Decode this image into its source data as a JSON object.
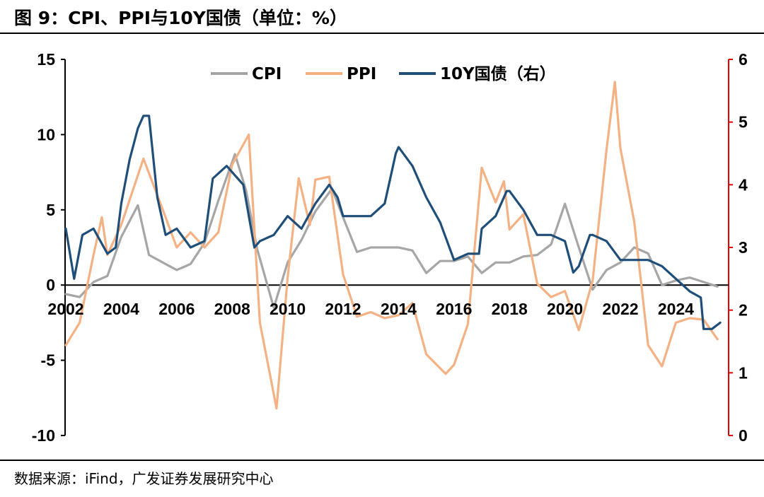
{
  "header": {
    "title": "图 9：CPI、PPI与10Y国债（单位：%）"
  },
  "footer": {
    "source": "数据来源：iFind，广发证券发展研究中心"
  },
  "chart_data": {
    "type": "line",
    "x_ticks": [
      "2002",
      "2004",
      "2006",
      "2008",
      "2010",
      "2012",
      "2014",
      "2016",
      "2018",
      "2020",
      "2022",
      "2024"
    ],
    "y_left": {
      "ticks": [
        "15",
        "10",
        "5",
        "0",
        "-5",
        "-10"
      ],
      "range": [
        -10,
        15
      ]
    },
    "y_right": {
      "ticks": [
        "6",
        "5",
        "4",
        "3",
        "2",
        "1",
        "0"
      ],
      "range": [
        0,
        6
      ]
    },
    "colors": {
      "CPI": "#a6a6a6",
      "PPI": "#f4b183",
      "10Y": "#1f4e79",
      "right_axis": "#e00000"
    },
    "legend": [
      "CPI",
      "PPI",
      "10Y国债（右）"
    ],
    "series": [
      {
        "name": "CPI",
        "axis": "left",
        "x": [
          2002.0,
          2002.5,
          2003.0,
          2003.5,
          2004.0,
          2004.6,
          2005.0,
          2005.5,
          2006.0,
          2006.5,
          2007.0,
          2007.5,
          2008.1,
          2008.5,
          2008.9,
          2009.5,
          2010.0,
          2010.5,
          2011.0,
          2011.6,
          2012.0,
          2012.5,
          2013.0,
          2013.5,
          2014.0,
          2014.5,
          2015.0,
          2015.5,
          2016.0,
          2016.5,
          2017.0,
          2017.5,
          2018.0,
          2018.5,
          2019.0,
          2019.5,
          2020.0,
          2020.5,
          2021.0,
          2021.5,
          2022.0,
          2022.5,
          2023.0,
          2023.5,
          2024.0,
          2024.5,
          2025.0,
          2025.5
        ],
        "values": [
          -0.6,
          -0.8,
          0.2,
          0.6,
          3.2,
          5.3,
          2.0,
          1.5,
          1.0,
          1.4,
          2.8,
          5.6,
          8.7,
          6.3,
          2.4,
          -1.5,
          1.5,
          3.0,
          4.9,
          6.4,
          4.5,
          2.2,
          2.5,
          2.5,
          2.5,
          2.3,
          0.8,
          1.6,
          1.6,
          1.9,
          0.8,
          1.5,
          1.5,
          1.9,
          2.0,
          2.7,
          5.4,
          2.5,
          -0.3,
          1.0,
          1.5,
          2.5,
          2.1,
          0.0,
          0.3,
          0.5,
          0.2,
          -0.1
        ]
      },
      {
        "name": "PPI",
        "axis": "left",
        "x": [
          2002.0,
          2002.5,
          2003.0,
          2003.3,
          2003.5,
          2004.0,
          2004.8,
          2005.5,
          2006.0,
          2006.5,
          2007.0,
          2007.5,
          2008.0,
          2008.6,
          2009.0,
          2009.6,
          2010.0,
          2010.4,
          2010.8,
          2011.0,
          2011.5,
          2012.0,
          2012.5,
          2013.0,
          2013.5,
          2014.0,
          2014.5,
          2015.0,
          2015.7,
          2016.0,
          2016.5,
          2017.0,
          2017.5,
          2017.8,
          2018.0,
          2018.5,
          2019.0,
          2019.5,
          2020.0,
          2020.5,
          2021.0,
          2021.5,
          2021.8,
          2022.0,
          2022.5,
          2023.0,
          2023.5,
          2024.0,
          2024.5,
          2025.0,
          2025.5
        ],
        "values": [
          -4.0,
          -2.5,
          2.0,
          4.5,
          2.0,
          4.0,
          8.4,
          5.0,
          2.5,
          3.5,
          2.5,
          3.5,
          8.0,
          10.0,
          -2.5,
          -8.2,
          0.5,
          7.1,
          4.0,
          7.0,
          7.2,
          0.7,
          -2.1,
          -1.8,
          -2.2,
          -2.0,
          -1.2,
          -4.6,
          -5.9,
          -5.3,
          -2.6,
          7.8,
          5.5,
          6.9,
          3.7,
          4.7,
          0.1,
          -0.8,
          -0.4,
          -3.0,
          0.3,
          9.0,
          13.5,
          9.1,
          4.2,
          -4.0,
          -5.4,
          -2.5,
          -2.2,
          -2.3,
          -3.6
        ]
      },
      {
        "name": "10Y国债（右）",
        "axis": "right",
        "x": [
          2002.0,
          2002.3,
          2002.6,
          2003.0,
          2003.5,
          2003.8,
          2004.0,
          2004.3,
          2004.6,
          2004.8,
          2005.0,
          2005.3,
          2005.6,
          2006.0,
          2006.5,
          2007.0,
          2007.3,
          2007.8,
          2008.0,
          2008.4,
          2008.8,
          2009.0,
          2009.5,
          2010.0,
          2010.5,
          2011.0,
          2011.5,
          2011.8,
          2012.0,
          2012.5,
          2013.0,
          2013.5,
          2013.9,
          2014.0,
          2014.5,
          2015.0,
          2015.5,
          2016.0,
          2016.5,
          2016.9,
          2017.0,
          2017.5,
          2017.9,
          2018.0,
          2018.5,
          2019.0,
          2019.5,
          2020.0,
          2020.3,
          2020.5,
          2020.9,
          2021.0,
          2021.5,
          2022.0,
          2022.5,
          2023.0,
          2023.5,
          2024.0,
          2024.5,
          2024.9,
          2025.0,
          2025.3,
          2025.6
        ],
        "values": [
          3.3,
          2.5,
          3.2,
          3.3,
          2.9,
          3.0,
          3.7,
          4.4,
          4.9,
          5.1,
          5.1,
          3.8,
          3.2,
          3.3,
          3.0,
          3.1,
          4.1,
          4.3,
          4.2,
          4.0,
          3.0,
          3.1,
          3.2,
          3.5,
          3.3,
          3.7,
          4.0,
          3.8,
          3.5,
          3.5,
          3.5,
          3.7,
          4.5,
          4.6,
          4.3,
          3.8,
          3.4,
          2.8,
          2.9,
          2.9,
          3.3,
          3.5,
          3.9,
          3.9,
          3.6,
          3.2,
          3.2,
          3.1,
          2.6,
          2.7,
          3.2,
          3.2,
          3.1,
          2.8,
          2.8,
          2.8,
          2.7,
          2.5,
          2.3,
          2.2,
          1.7,
          1.7,
          1.8
        ]
      }
    ]
  }
}
